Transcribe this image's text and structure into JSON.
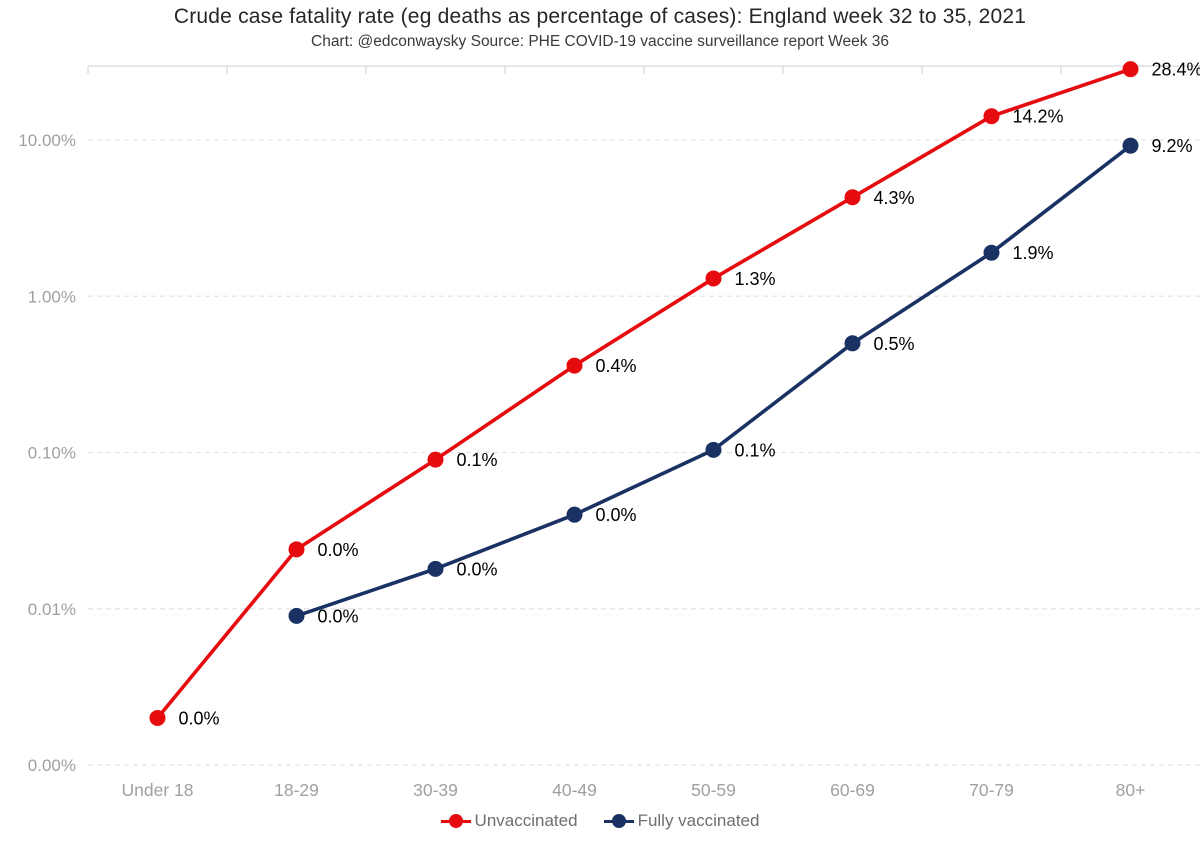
{
  "title": "Crude case fatality rate (eg deaths as percentage of cases): England week 32 to 35, 2021",
  "subtitle": "Chart: @edconwaysky Source: PHE COVID-19 vaccine surveillance report Week 36",
  "colors": {
    "unvaccinated": "#e60b0e",
    "fully_vaccinated": "#1a3263",
    "gridline": "#e4e4e4",
    "axis_border": "#d9d9d9",
    "axis_text": "#a0a0a0",
    "data_label_text": "#000000",
    "legend_text": "#6f6f6f",
    "background": "#ffffff"
  },
  "chart_data": {
    "type": "line",
    "title": "Crude case fatality rate (eg deaths as percentage of cases): England week 32 to 35, 2021",
    "subtitle": "Chart: @edconwaysky Source: PHE COVID-19 vaccine surveillance report Week 36",
    "categories": [
      "Under 18",
      "18-29",
      "30-39",
      "40-49",
      "50-59",
      "60-69",
      "70-79",
      "80+"
    ],
    "y_axis": {
      "scale": "log",
      "ylim_percent": [
        0.001,
        30
      ],
      "ticks": [
        {
          "label": "10.00%",
          "value": 10
        },
        {
          "label": "1.00%",
          "value": 1
        },
        {
          "label": "0.10%",
          "value": 0.1
        },
        {
          "label": "0.01%",
          "value": 0.01
        },
        {
          "label": "0.00%",
          "value": 0.001
        }
      ]
    },
    "grid": "horizontal-dashed",
    "legend_position": "bottom",
    "series": [
      {
        "name": "Unvaccinated",
        "color": "#e60b0e",
        "values": [
          0.002,
          0.024,
          0.09,
          0.36,
          1.3,
          4.3,
          14.2,
          28.4
        ],
        "labels": [
          "0.0%",
          "0.0%",
          "0.1%",
          "0.4%",
          "1.3%",
          "4.3%",
          "14.2%",
          "28.4%"
        ]
      },
      {
        "name": "Fully vaccinated",
        "color": "#1a3263",
        "values": [
          null,
          0.009,
          0.018,
          0.04,
          0.104,
          0.5,
          1.9,
          9.2
        ],
        "labels": [
          null,
          "0.0%",
          "0.0%",
          "0.0%",
          "0.1%",
          "0.5%",
          "1.9%",
          "9.2%"
        ]
      }
    ]
  }
}
